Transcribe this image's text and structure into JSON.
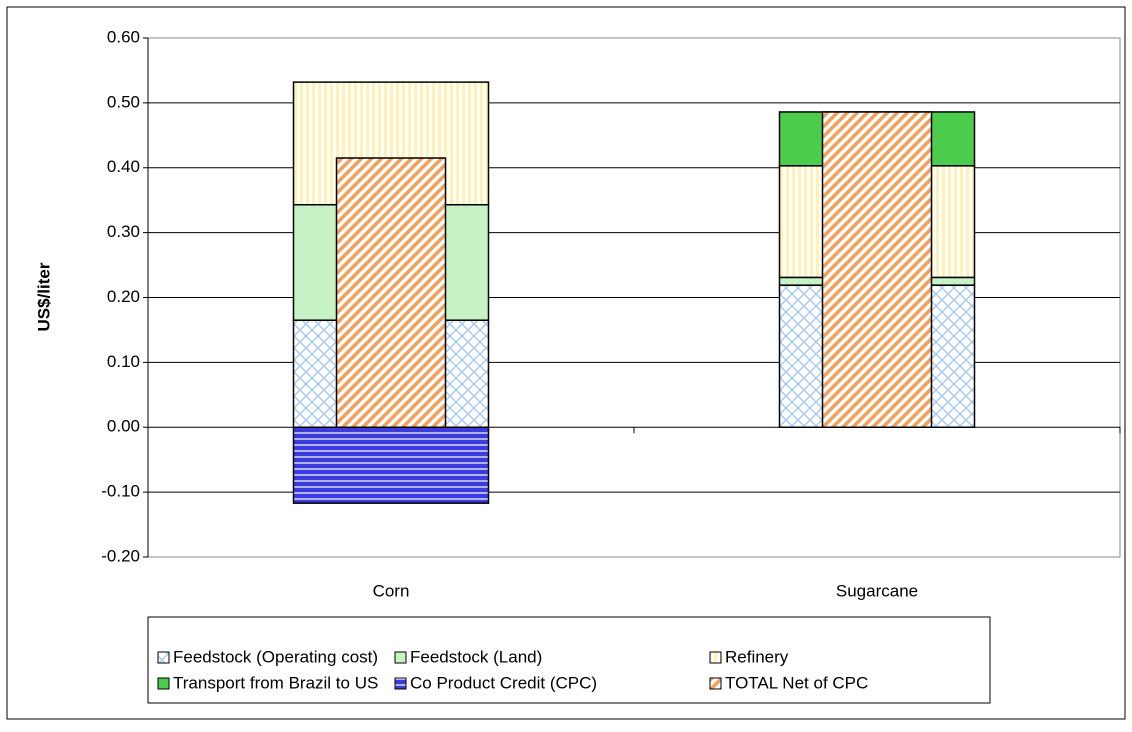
{
  "chart_data": {
    "type": "bar",
    "y_label": "US$/liter",
    "categories": [
      "Corn",
      "Sugarcane"
    ],
    "series": [
      {
        "name": "Feedstock (Operating cost)",
        "color": "#a9cbef",
        "pattern": "crosshatch",
        "values": [
          0.165,
          0.219
        ]
      },
      {
        "name": "Feedstock (Land)",
        "color": "#c6f2c6",
        "pattern": "solid",
        "values": [
          0.178,
          0.012
        ]
      },
      {
        "name": "Refinery",
        "color": "#fff2b3",
        "pattern": "vertical",
        "values": [
          0.189,
          0.172
        ]
      },
      {
        "name": "Transport from Brazil to US",
        "color": "#4ccc4c",
        "pattern": "solid",
        "values": [
          0,
          0.083
        ]
      },
      {
        "name": "Co Product Credit (CPC)",
        "color": "#3c3cdc",
        "pattern": "horizontal",
        "values": [
          -0.117,
          0
        ]
      },
      {
        "name": "TOTAL Net of CPC",
        "color": "#f5a05a",
        "pattern": "diagonal",
        "stacked": false,
        "values": [
          0.415,
          0.486
        ]
      }
    ],
    "ylim": [
      -0.2,
      0.6
    ],
    "yticks": [
      {
        "value": -0.2,
        "label": "-0.20"
      },
      {
        "value": -0.1,
        "label": "-0.10"
      },
      {
        "value": 0,
        "label": "0.00"
      },
      {
        "value": 0.1,
        "label": "0.10"
      },
      {
        "value": 0.2,
        "label": "0.20"
      },
      {
        "value": 0.3,
        "label": "0.30"
      },
      {
        "value": 0.4,
        "label": "0.40"
      },
      {
        "value": 0.5,
        "label": "0.50"
      },
      {
        "value": 0.6,
        "label": "0.60"
      }
    ],
    "grid": true
  }
}
